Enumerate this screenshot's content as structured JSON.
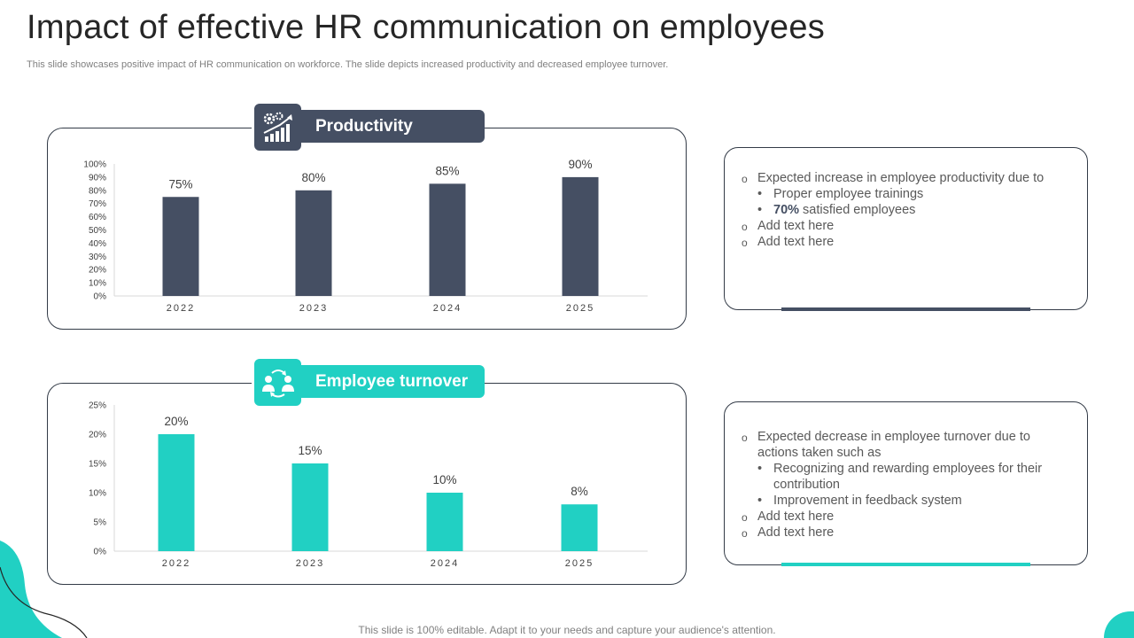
{
  "slide": {
    "title": "Impact of effective HR communication on employees",
    "subtitle": "This slide showcases positive impact of HR communication on workforce. The slide depicts increased productivity and decreased employee turnover.",
    "footer": "This slide is 100% editable. Adapt it to your needs and capture your audience's attention."
  },
  "colors": {
    "productivity": "#454f63",
    "turnover": "#21d0c3",
    "border": "#333b47"
  },
  "icons": {
    "productivity": "gear-growth-chart-icon",
    "turnover": "employee-exchange-icon"
  },
  "chart_data": [
    {
      "type": "bar",
      "title": "Productivity",
      "categories": [
        "2022",
        "2023",
        "2024",
        "2025"
      ],
      "values": [
        75,
        80,
        85,
        90
      ],
      "data_labels": [
        "75%",
        "80%",
        "85%",
        "90%"
      ],
      "yticks": [
        "0%",
        "10%",
        "20%",
        "30%",
        "40%",
        "50%",
        "60%",
        "70%",
        "80%",
        "90%",
        "100%"
      ],
      "ylim": [
        0,
        100
      ],
      "grid": false,
      "color": "#454f63"
    },
    {
      "type": "bar",
      "title": "Employee turnover",
      "categories": [
        "2022",
        "2023",
        "2024",
        "2025"
      ],
      "values": [
        20,
        15,
        10,
        8
      ],
      "data_labels": [
        "20%",
        "15%",
        "10%",
        "8%"
      ],
      "yticks": [
        "0%",
        "5%",
        "10%",
        "15%",
        "20%",
        "25%"
      ],
      "ylim": [
        0,
        25
      ],
      "grid": false,
      "color": "#21d0c3"
    }
  ],
  "productivity_notes": {
    "line1": "Expected increase in employee productivity due to",
    "sub1": "Proper employee trainings",
    "sub2_highlight": "70%",
    "sub2_rest": " satisfied employees",
    "line2": "Add text here",
    "line3": "Add text here"
  },
  "turnover_notes": {
    "line1": "Expected decrease in employee turnover due to actions taken such as",
    "sub1": "Recognizing and rewarding employees for their contribution",
    "sub2": "Improvement in feedback system",
    "line2": "Add text here",
    "line3": "Add text here"
  }
}
